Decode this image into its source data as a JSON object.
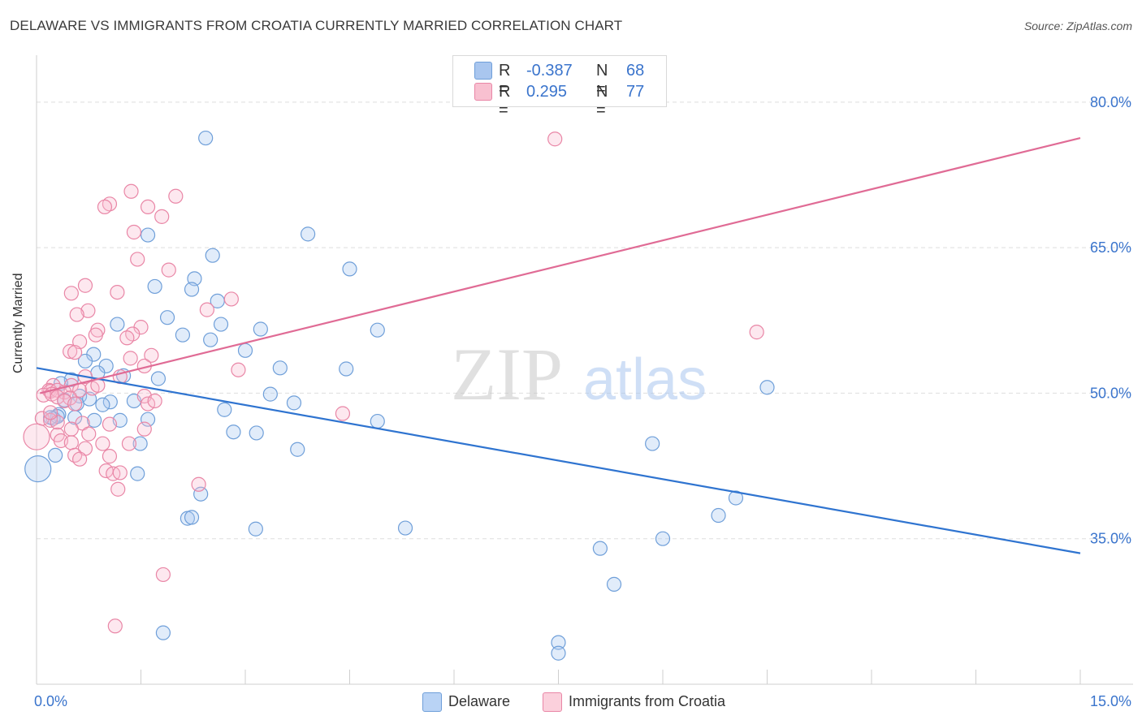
{
  "title": "DELAWARE VS IMMIGRANTS FROM CROATIA CURRENTLY MARRIED CORRELATION CHART",
  "source": "Source: ZipAtlas.com",
  "watermark": {
    "zip": "ZIP",
    "atlas": "atlas"
  },
  "stats": [
    {
      "r_label": "R =",
      "r_value": "-0.387",
      "n_label": "N =",
      "n_value": "68",
      "color": "#a9c6ef",
      "border": "#6f9fd9"
    },
    {
      "r_label": "R =",
      "r_value": "0.295",
      "n_label": "N =",
      "n_value": "77",
      "color": "#f8c0d0",
      "border": "#e986a6"
    }
  ],
  "legend": [
    {
      "label": "Delaware",
      "color": "#b9d3f5",
      "border": "#6f9fd9"
    },
    {
      "label": "Immigrants from Croatia",
      "color": "#fbd0dc",
      "border": "#e986a6"
    }
  ],
  "chart_data": {
    "type": "scatter",
    "title": "DELAWARE VS IMMIGRANTS FROM CROATIA CURRENTLY MARRIED CORRELATION CHART",
    "xlabel": "",
    "ylabel": "Currently Married",
    "xlim": [
      0,
      15
    ],
    "ylim": [
      20,
      84
    ],
    "x_tick_labels": [
      {
        "value": 0,
        "label": "0.0%"
      },
      {
        "value": 15,
        "label": "15.0%"
      }
    ],
    "y_tick_labels": [
      {
        "value": 35,
        "label": "35.0%"
      },
      {
        "value": 50,
        "label": "50.0%"
      },
      {
        "value": 65,
        "label": "65.0%"
      },
      {
        "value": 80,
        "label": "80.0%"
      }
    ],
    "series": [
      {
        "name": "Delaware",
        "color": "#6f9fd9",
        "fill": "rgba(170,200,240,0.35)",
        "trend": {
          "x": [
            0,
            15
          ],
          "y": [
            52.6,
            33.5
          ],
          "color": "#2f74d0"
        },
        "points": [
          [
            2.43,
            76.3
          ],
          [
            1.6,
            66.3
          ],
          [
            3.9,
            66.4
          ],
          [
            2.53,
            64.2
          ],
          [
            4.5,
            62.8
          ],
          [
            2.27,
            61.8
          ],
          [
            1.7,
            61.0
          ],
          [
            2.23,
            60.7
          ],
          [
            2.6,
            59.5
          ],
          [
            1.16,
            57.1
          ],
          [
            1.88,
            57.8
          ],
          [
            2.65,
            57.1
          ],
          [
            3.22,
            56.6
          ],
          [
            4.9,
            56.5
          ],
          [
            2.1,
            56.0
          ],
          [
            2.5,
            55.5
          ],
          [
            3.0,
            54.4
          ],
          [
            0.82,
            54.0
          ],
          [
            0.7,
            53.3
          ],
          [
            1.0,
            52.8
          ],
          [
            3.5,
            52.6
          ],
          [
            4.45,
            52.5
          ],
          [
            0.88,
            52.1
          ],
          [
            1.25,
            51.8
          ],
          [
            1.75,
            51.5
          ],
          [
            0.5,
            51.4
          ],
          [
            0.35,
            51.0
          ],
          [
            3.36,
            49.9
          ],
          [
            0.62,
            49.7
          ],
          [
            0.76,
            49.4
          ],
          [
            0.58,
            48.9
          ],
          [
            0.4,
            49.3
          ],
          [
            1.06,
            49.1
          ],
          [
            0.95,
            48.8
          ],
          [
            1.4,
            49.2
          ],
          [
            3.7,
            49.0
          ],
          [
            10.5,
            50.6
          ],
          [
            0.32,
            47.8
          ],
          [
            0.24,
            47.4
          ],
          [
            0.3,
            47.6
          ],
          [
            0.2,
            47.5
          ],
          [
            0.55,
            47.5
          ],
          [
            0.83,
            47.2
          ],
          [
            1.2,
            47.2
          ],
          [
            1.6,
            47.3
          ],
          [
            2.7,
            48.3
          ],
          [
            4.9,
            47.1
          ],
          [
            2.83,
            46.0
          ],
          [
            3.16,
            45.9
          ],
          [
            1.49,
            44.8
          ],
          [
            8.85,
            44.8
          ],
          [
            3.75,
            44.2
          ],
          [
            0.27,
            43.6
          ],
          [
            1.45,
            41.7
          ],
          [
            0.02,
            42.2
          ],
          [
            2.36,
            39.6
          ],
          [
            10.05,
            39.2
          ],
          [
            2.17,
            37.1
          ],
          [
            2.23,
            37.2
          ],
          [
            9.8,
            37.4
          ],
          [
            3.15,
            36.0
          ],
          [
            5.3,
            36.1
          ],
          [
            9.0,
            35.0
          ],
          [
            8.1,
            34.0
          ],
          [
            8.3,
            30.3
          ],
          [
            1.82,
            25.3
          ],
          [
            7.5,
            24.3
          ],
          [
            7.5,
            23.2
          ]
        ]
      },
      {
        "name": "Immigrants from Croatia",
        "color": "#e986a6",
        "fill": "rgba(248,190,208,0.35)",
        "trend": {
          "x": [
            0.05,
            15
          ],
          "y": [
            50.0,
            76.3
          ],
          "color": "#e06b95"
        },
        "points": [
          [
            7.45,
            76.2
          ],
          [
            1.36,
            70.8
          ],
          [
            2.0,
            70.3
          ],
          [
            1.05,
            69.5
          ],
          [
            0.98,
            69.2
          ],
          [
            1.6,
            69.2
          ],
          [
            1.8,
            68.2
          ],
          [
            1.4,
            66.6
          ],
          [
            1.45,
            63.8
          ],
          [
            1.9,
            62.7
          ],
          [
            0.7,
            61.1
          ],
          [
            1.16,
            60.4
          ],
          [
            0.5,
            60.3
          ],
          [
            2.8,
            59.7
          ],
          [
            2.45,
            58.6
          ],
          [
            0.74,
            58.5
          ],
          [
            0.58,
            58.1
          ],
          [
            1.5,
            56.8
          ],
          [
            0.88,
            56.5
          ],
          [
            0.85,
            56.0
          ],
          [
            1.38,
            56.1
          ],
          [
            1.3,
            55.7
          ],
          [
            10.35,
            56.3
          ],
          [
            0.62,
            55.3
          ],
          [
            0.48,
            54.3
          ],
          [
            0.55,
            54.2
          ],
          [
            1.65,
            53.9
          ],
          [
            1.35,
            53.6
          ],
          [
            1.55,
            52.8
          ],
          [
            2.9,
            52.4
          ],
          [
            0.7,
            51.7
          ],
          [
            1.2,
            51.7
          ],
          [
            0.5,
            50.8
          ],
          [
            0.24,
            50.8
          ],
          [
            0.18,
            50.3
          ],
          [
            0.2,
            50.2
          ],
          [
            0.3,
            50.3
          ],
          [
            0.4,
            50.1
          ],
          [
            0.62,
            50.3
          ],
          [
            0.8,
            50.5
          ],
          [
            0.88,
            50.8
          ],
          [
            0.1,
            49.8
          ],
          [
            0.22,
            49.9
          ],
          [
            0.3,
            49.6
          ],
          [
            0.48,
            49.5
          ],
          [
            0.4,
            49.2
          ],
          [
            0.55,
            48.9
          ],
          [
            1.55,
            49.7
          ],
          [
            1.6,
            48.9
          ],
          [
            1.7,
            49.2
          ],
          [
            4.4,
            47.9
          ],
          [
            0.08,
            47.4
          ],
          [
            0.2,
            47.2
          ],
          [
            0.3,
            47.0
          ],
          [
            0.66,
            46.9
          ],
          [
            1.05,
            46.8
          ],
          [
            0.5,
            46.3
          ],
          [
            1.55,
            46.3
          ],
          [
            0.3,
            45.7
          ],
          [
            0.75,
            45.8
          ],
          [
            0.35,
            45.1
          ],
          [
            0.5,
            44.9
          ],
          [
            0.95,
            44.8
          ],
          [
            1.33,
            44.8
          ],
          [
            0.7,
            44.3
          ],
          [
            0.55,
            43.6
          ],
          [
            0.62,
            43.2
          ],
          [
            1.05,
            43.5
          ],
          [
            0.0,
            45.5
          ],
          [
            1.0,
            42.0
          ],
          [
            1.1,
            41.7
          ],
          [
            1.2,
            41.8
          ],
          [
            2.33,
            40.6
          ],
          [
            1.17,
            40.1
          ],
          [
            1.82,
            31.3
          ],
          [
            1.13,
            26.0
          ],
          [
            0.2,
            48.0
          ]
        ]
      }
    ]
  }
}
